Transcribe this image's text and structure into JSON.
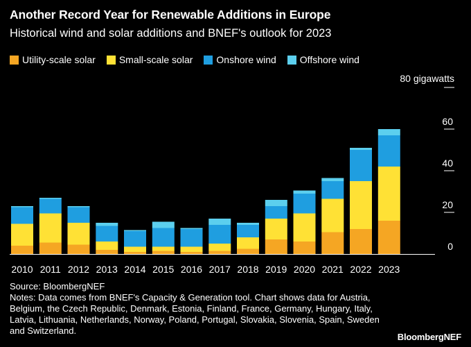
{
  "chart_data": {
    "type": "bar",
    "stacked": true,
    "title": "Another Record Year for Renewable Additions in Europe",
    "subtitle": "Historical wind and solar additions and BNEF's outlook for 2023",
    "ylabel": "gigawatts",
    "y_unit_label": "80 gigawatts",
    "ylim": [
      0,
      80
    ],
    "yticks": [
      0,
      20,
      40,
      60,
      80
    ],
    "categories": [
      "2010",
      "2011",
      "2012",
      "2013",
      "2014",
      "2015",
      "2016",
      "2017",
      "2018",
      "2019",
      "2020",
      "2021",
      "2022",
      "2023"
    ],
    "series": [
      {
        "name": "Utility-scale solar",
        "color": "#f5a623",
        "values": [
          4,
          5.5,
          4.5,
          2,
          1,
          1.5,
          1,
          1.5,
          2.5,
          7,
          6,
          10.5,
          12,
          16
        ]
      },
      {
        "name": "Small-scale solar",
        "color": "#ffe135",
        "values": [
          10.5,
          14,
          10.5,
          4,
          2.5,
          2,
          2.5,
          3.5,
          5.5,
          10,
          13.5,
          16,
          23,
          26
        ]
      },
      {
        "name": "Onshore wind",
        "color": "#1f9ee0",
        "values": [
          8,
          7,
          7.5,
          7.5,
          7.5,
          9,
          8.5,
          9,
          6,
          6,
          9.5,
          8.5,
          15,
          15
        ]
      },
      {
        "name": "Offshore wind",
        "color": "#5ccfee",
        "values": [
          0.5,
          0.5,
          0.5,
          1.5,
          0.5,
          3,
          0.5,
          3,
          1,
          3,
          1.5,
          1.5,
          1,
          3
        ]
      }
    ],
    "legend_position": "top-left",
    "y_axis_side": "right"
  },
  "source": "Source: BloombergNEF",
  "notes": "Notes: Data comes from BNEF's Capacity & Generation tool. Chart shows data for Austria, Belgium, the Czech Republic, Denmark, Estonia, Finland, France, Germany, Hungary, Italy, Latvia, Lithuania, Netherlands, Norway, Poland, Portugal, Slovakia, Slovenia, Spain, Sweden and Switzerland.",
  "brand": "BloombergNEF"
}
